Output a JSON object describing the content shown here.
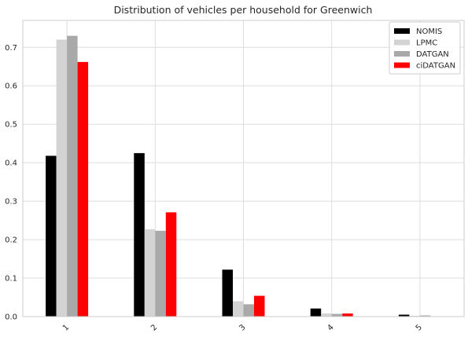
{
  "chart_data": {
    "type": "bar",
    "title": "Distribution of vehicles per household for Greenwich",
    "xlabel": "",
    "ylabel": "",
    "categories": [
      "1",
      "2",
      "3",
      "4",
      "5"
    ],
    "ylim": [
      0,
      0.77
    ],
    "yticks": [
      "0.0",
      "0.1",
      "0.2",
      "0.3",
      "0.4",
      "0.5",
      "0.6",
      "0.7"
    ],
    "grid": true,
    "legend_position": "top-right",
    "series": [
      {
        "name": "NOMIS",
        "color": "#000000",
        "values": [
          0.418,
          0.425,
          0.122,
          0.021,
          0.005
        ]
      },
      {
        "name": "LPMC",
        "color": "#d3d3d3",
        "values": [
          0.72,
          0.227,
          0.04,
          0.008,
          0.002
        ]
      },
      {
        "name": "DATGAN",
        "color": "#a9a9a9",
        "values": [
          0.73,
          0.223,
          0.032,
          0.007,
          0.003
        ]
      },
      {
        "name": "ciDATGAN",
        "color": "#ff0000",
        "values": [
          0.662,
          0.271,
          0.054,
          0.008,
          0.001
        ]
      }
    ]
  }
}
